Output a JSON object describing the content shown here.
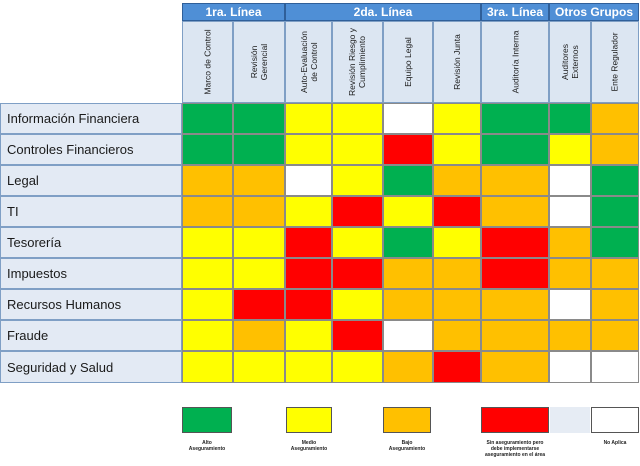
{
  "colors": {
    "green": "#00b050",
    "yellow": "#ffff00",
    "orange": "#ffc000",
    "red": "#ff0000",
    "white": "#ffffff"
  },
  "groups": [
    {
      "label": "1ra. Línea",
      "span": 2
    },
    {
      "label": "2da. Línea",
      "span": 4
    },
    {
      "label": "3ra. Línea",
      "span": 1
    },
    {
      "label": "Otros Grupos",
      "span": 2
    }
  ],
  "columns": [
    "Marco de Control",
    "Revisión\nGerencial",
    "Auto-Evaluación\nde Control",
    "Revisión Riesgo y\nCumplimiento",
    "Equipo Legal",
    "Revisión Junta",
    "Auditoría Interna",
    "Auditores\nExternos",
    "Ente Regulador"
  ],
  "rows": [
    {
      "label": "Información Financiera",
      "cells": [
        "green",
        "green",
        "yellow",
        "yellow",
        "white",
        "yellow",
        "green",
        "green",
        "orange"
      ]
    },
    {
      "label": "Controles Financieros",
      "cells": [
        "green",
        "green",
        "yellow",
        "yellow",
        "red",
        "yellow",
        "green",
        "yellow",
        "orange"
      ]
    },
    {
      "label": "Legal",
      "cells": [
        "orange",
        "orange",
        "white",
        "yellow",
        "green",
        "orange",
        "orange",
        "white",
        "green"
      ]
    },
    {
      "label": "TI",
      "cells": [
        "orange",
        "orange",
        "yellow",
        "red",
        "yellow",
        "red",
        "orange",
        "white",
        "green"
      ]
    },
    {
      "label": "Tesorería",
      "cells": [
        "yellow",
        "yellow",
        "red",
        "yellow",
        "green",
        "yellow",
        "red",
        "orange",
        "green"
      ]
    },
    {
      "label": "Impuestos",
      "cells": [
        "yellow",
        "yellow",
        "red",
        "red",
        "orange",
        "orange",
        "red",
        "orange",
        "orange"
      ]
    },
    {
      "label": "Recursos Humanos",
      "cells": [
        "yellow",
        "red",
        "red",
        "yellow",
        "orange",
        "orange",
        "orange",
        "white",
        "orange"
      ]
    },
    {
      "label": "Fraude",
      "cells": [
        "yellow",
        "orange",
        "yellow",
        "red",
        "white",
        "orange",
        "orange",
        "orange",
        "orange"
      ]
    },
    {
      "label": "Seguridad y Salud",
      "cells": [
        "yellow",
        "yellow",
        "yellow",
        "yellow",
        "orange",
        "red",
        "orange",
        "white",
        "white"
      ]
    }
  ],
  "legend": [
    {
      "color": "green",
      "label": "Alto\nAseguramiento"
    },
    {
      "color": "yellow",
      "label": "Medio\nAseguramiento"
    },
    {
      "color": "orange",
      "label": "Bajo\nAseguramiento"
    },
    {
      "color": "red",
      "label": "Sin aseguramiento pero\ndebe implementarse\naseguramiento en el área"
    },
    {
      "color": "white",
      "label": "No Aplica"
    }
  ]
}
